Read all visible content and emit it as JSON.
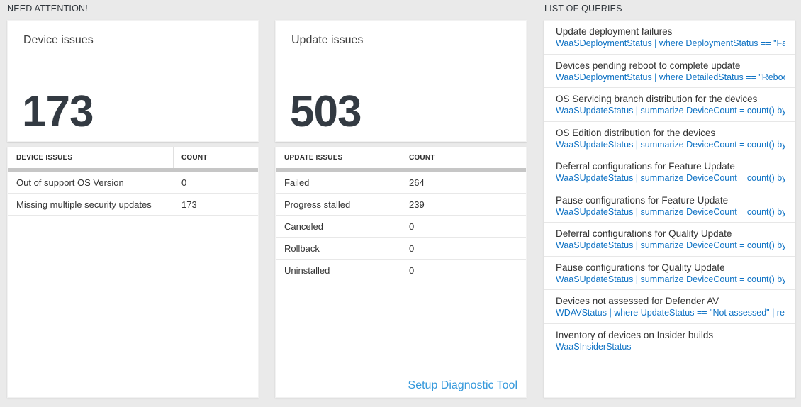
{
  "colors": {
    "page_background": "#eaeaea",
    "query_link_blue": "#0e72c4",
    "diagnostic_link_blue": "#3599dc",
    "big_number_color": "#333a42",
    "grid_divider_gray": "#c6c6c6"
  },
  "need_attention": {
    "label": "NEED ATTENTION!",
    "device_card": {
      "title": "Device issues",
      "big_number": "173",
      "table": {
        "headers": {
          "col1": "DEVICE ISSUES",
          "col2": "COUNT"
        },
        "rows": [
          {
            "label": "Out of support OS Version",
            "count": "0"
          },
          {
            "label": "Missing multiple security updates",
            "count": "173"
          }
        ]
      }
    },
    "update_card": {
      "title": "Update issues",
      "big_number": "503",
      "table": {
        "headers": {
          "col1": "UPDATE ISSUES",
          "col2": "COUNT"
        },
        "rows": [
          {
            "label": "Failed",
            "count": "264"
          },
          {
            "label": "Progress stalled",
            "count": "239"
          },
          {
            "label": "Canceled",
            "count": "0"
          },
          {
            "label": "Rollback",
            "count": "0"
          },
          {
            "label": "Uninstalled",
            "count": "0"
          }
        ]
      },
      "footer_link": "Setup Diagnostic Tool"
    }
  },
  "query_list": {
    "label": "LIST OF QUERIES",
    "items": [
      {
        "title": "Update deployment failures",
        "query": "WaaSDeploymentStatus | where DeploymentStatus == \"Failed\" |..."
      },
      {
        "title": "Devices pending reboot to complete update",
        "query": "WaaSDeploymentStatus | where DetailedStatus == \"Reboot pend..."
      },
      {
        "title": "OS Servicing branch distribution for the devices",
        "query": "WaaSUpdateStatus | summarize DeviceCount = count() by OSSer..."
      },
      {
        "title": "OS Edition distribution for the devices",
        "query": "WaaSUpdateStatus | summarize DeviceCount = count() by OSEdit..."
      },
      {
        "title": "Deferral configurations for Feature Update",
        "query": "WaaSUpdateStatus | summarize DeviceCount = count() by Featur..."
      },
      {
        "title": "Pause configurations for Feature Update",
        "query": "WaaSUpdateStatus | summarize DeviceCount = count() by Featur..."
      },
      {
        "title": "Deferral configurations for Quality Update",
        "query": "WaaSUpdateStatus | summarize DeviceCount = count() by Qualit..."
      },
      {
        "title": "Pause configurations for Quality Update",
        "query": "WaaSUpdateStatus | summarize DeviceCount = count() by Qualit..."
      },
      {
        "title": "Devices not assessed for Defender AV",
        "query": "WDAVStatus | where UpdateStatus == \"Not assessed\" | render ta..."
      },
      {
        "title": "Inventory of devices on Insider builds",
        "query": "WaaSInsiderStatus"
      }
    ]
  }
}
